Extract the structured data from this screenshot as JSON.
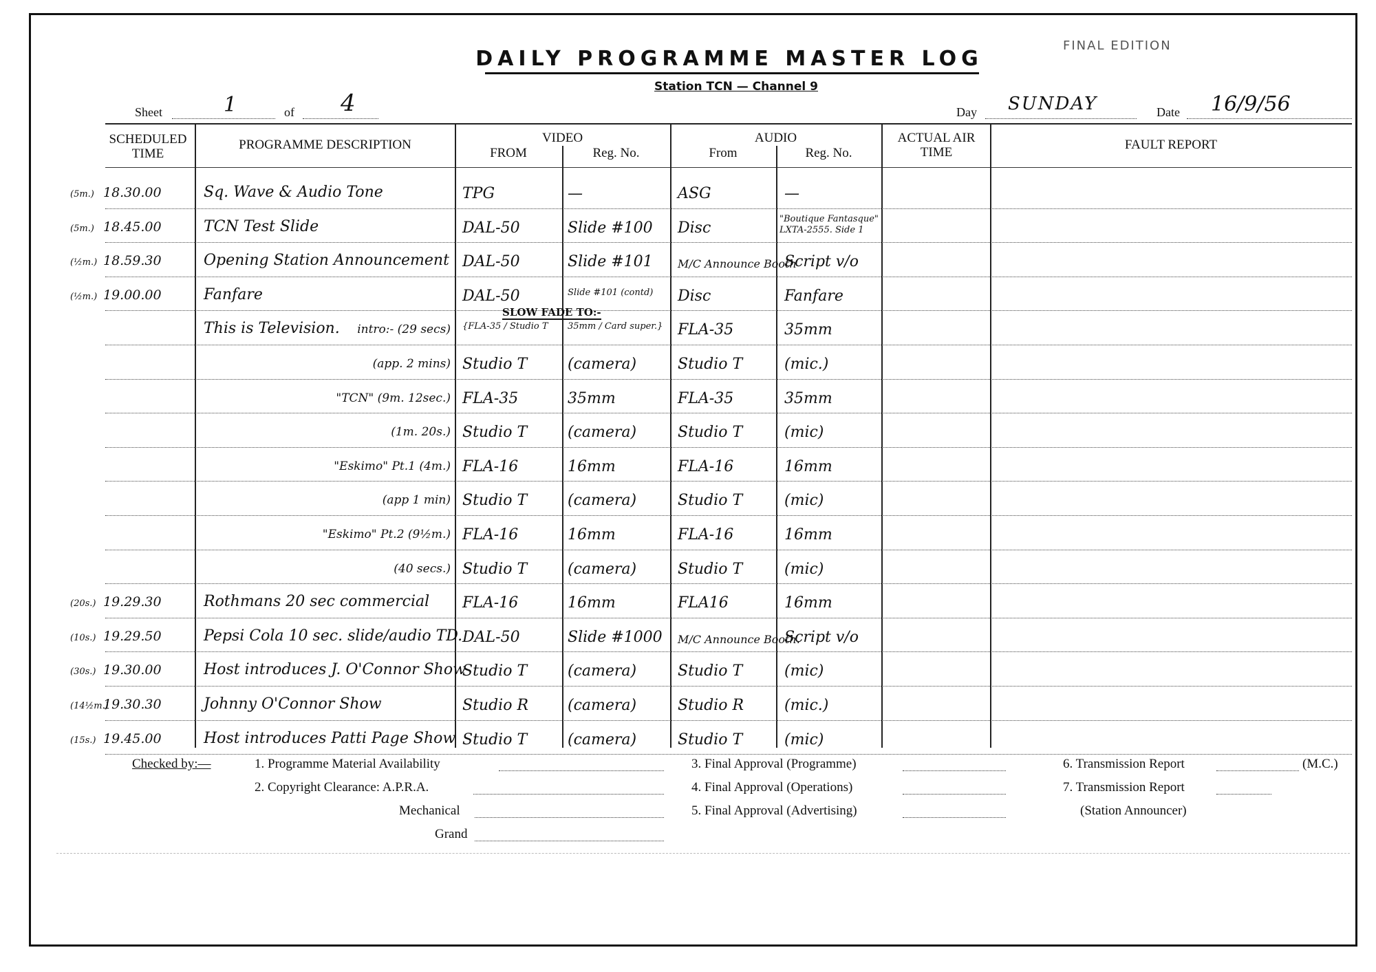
{
  "header": {
    "title": "DAILY PROGRAMME MASTER LOG",
    "station": "Station TCN — Channel 9",
    "stamp": "FINAL EDITION",
    "sheet_label": "Sheet",
    "sheet": "1",
    "of_label": "of",
    "of": "4",
    "day_label": "Day",
    "day": "SUNDAY",
    "date_label": "Date",
    "date": "16/9/56"
  },
  "columns": {
    "time": "SCHEDULED TIME",
    "description": "PROGRAMME DESCRIPTION",
    "video": "VIDEO",
    "video_from": "FROM",
    "video_reg": "Reg. No.",
    "audio": "AUDIO",
    "audio_from": "From",
    "audio_reg": "Reg. No.",
    "air": "ACTUAL AIR TIME",
    "fault": "FAULT REPORT"
  },
  "rows": [
    {
      "dur": "(5m.)",
      "time": "18.30.00",
      "desc": "Sq. Wave & Audio Tone",
      "vfrom": "TPG",
      "vreg": "—",
      "afrom": "ASG",
      "areg": "—"
    },
    {
      "dur": "(5m.)",
      "time": "18.45.00",
      "desc": "TCN Test Slide",
      "vfrom": "DAL-50",
      "vreg": "Slide #100",
      "afrom": "Disc",
      "areg": "\"Boutique Fantasque\" LXTA-2555. Side 1"
    },
    {
      "dur": "(½m.)",
      "time": "18.59.30",
      "desc": "Opening Station Announcement",
      "vfrom": "DAL-50",
      "vreg": "Slide #101",
      "afrom": "M/C Announce Booth",
      "areg": "Script v/o"
    },
    {
      "dur": "(½m.)",
      "time": "19.00.00",
      "desc": "Fanfare",
      "vfrom": "DAL-50",
      "vreg": "Slide #101 (contd)",
      "afrom": "Disc",
      "areg": "Fanfare"
    },
    {
      "dur": "",
      "time": "",
      "desc": "This is Television.",
      "note": "intro:- (29 secs)",
      "vfrom": "{FLA-35 / Studio T",
      "vreg": "35mm / Card super.}",
      "annotation": "SLOW FADE TO:-",
      "afrom": "FLA-35",
      "areg": "35mm"
    },
    {
      "dur": "",
      "time": "",
      "desc": "",
      "note": "(app. 2 mins)",
      "vfrom": "Studio T",
      "vreg": "(camera)",
      "afrom": "Studio T",
      "areg": "(mic.)"
    },
    {
      "dur": "",
      "time": "",
      "desc": "",
      "note": "\"TCN\" (9m. 12sec.)",
      "vfrom": "FLA-35",
      "vreg": "35mm",
      "afrom": "FLA-35",
      "areg": "35mm"
    },
    {
      "dur": "",
      "time": "",
      "desc": "",
      "note": "(1m. 20s.)",
      "vfrom": "Studio T",
      "vreg": "(camera)",
      "afrom": "Studio T",
      "areg": "(mic)"
    },
    {
      "dur": "",
      "time": "",
      "desc": "",
      "note": "\"Eskimo\" Pt.1 (4m.)",
      "vfrom": "FLA-16",
      "vreg": "16mm",
      "afrom": "FLA-16",
      "areg": "16mm"
    },
    {
      "dur": "",
      "time": "",
      "desc": "",
      "note": "(app 1 min)",
      "vfrom": "Studio T",
      "vreg": "(camera)",
      "afrom": "Studio T",
      "areg": "(mic)"
    },
    {
      "dur": "",
      "time": "",
      "desc": "",
      "note": "\"Eskimo\" Pt.2 (9½m.)",
      "vfrom": "FLA-16",
      "vreg": "16mm",
      "afrom": "FLA-16",
      "areg": "16mm"
    },
    {
      "dur": "",
      "time": "",
      "desc": "",
      "note": "(40 secs.)",
      "vfrom": "Studio T",
      "vreg": "(camera)",
      "afrom": "Studio T",
      "areg": "(mic)"
    },
    {
      "dur": "(20s.)",
      "time": "19.29.30",
      "desc": "Rothmans 20 sec commercial",
      "vfrom": "FLA-16",
      "vreg": "16mm",
      "afrom": "FLA16",
      "areg": "16mm"
    },
    {
      "dur": "(10s.)",
      "time": "19.29.50",
      "desc": "Pepsi Cola 10 sec. slide/audio TD.",
      "vfrom": "DAL-50",
      "vreg": "Slide #1000",
      "afrom": "M/C Announce Booth.",
      "areg": "Script v/o"
    },
    {
      "dur": "(30s.)",
      "time": "19.30.00",
      "desc": "Host introduces J. O'Connor Show",
      "vfrom": "Studio T",
      "vreg": "(camera)",
      "afrom": "Studio T",
      "areg": "(mic)"
    },
    {
      "dur": "(14½m.)",
      "time": "19.30.30",
      "desc": "Johnny O'Connor Show",
      "vfrom": "Studio R",
      "vreg": "(camera)",
      "afrom": "Studio R",
      "areg": "(mic.)"
    },
    {
      "dur": "(15s.)",
      "time": "19.45.00",
      "desc": "Host introduces Patti Page Show",
      "vfrom": "Studio T",
      "vreg": "(camera)",
      "afrom": "Studio T",
      "areg": "(mic)"
    }
  ],
  "footer": {
    "checked_by": "Checked by:—",
    "item1": "1. Programme Material Availability",
    "item2": "2. Copyright Clearance: A.P.R.A.",
    "mechanical": "Mechanical",
    "grand": "Grand",
    "item3": "3. Final Approval (Programme)",
    "item4": "4. Final Approval (Operations)",
    "item5": "5. Final Approval (Advertising)",
    "item6": "6. Transmission Report",
    "item6_suffix": "(M.C.)",
    "item7": "7. Transmission Report",
    "item7_suffix": "(Station Announcer)"
  }
}
